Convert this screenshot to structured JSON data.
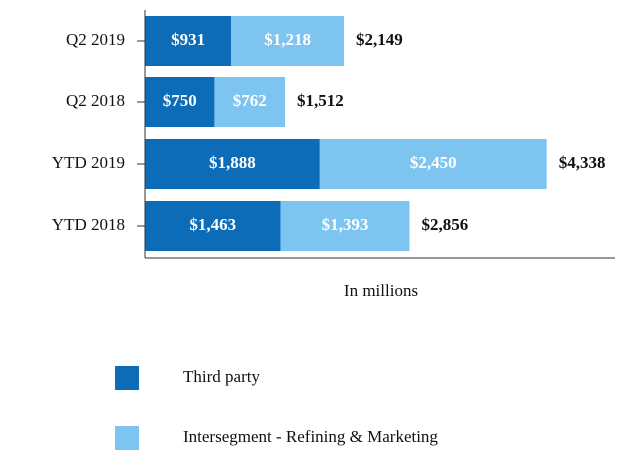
{
  "chart_data": {
    "type": "bar-stacked-horizontal",
    "categories": [
      "Q2 2019",
      "Q2 2018",
      "YTD 2019",
      "YTD 2018"
    ],
    "series": [
      {
        "name": "Third party",
        "color": "#0d6cb8",
        "values": [
          931,
          750,
          1888,
          1463
        ],
        "value_labels": [
          "$931",
          "$750",
          "$1,888",
          "$1,463"
        ]
      },
      {
        "name": "Intersegment - Refining & Marketing",
        "color": "#7ec4f1",
        "values": [
          1218,
          762,
          2450,
          1393
        ],
        "value_labels": [
          "$1,218",
          "$762",
          "$2,450",
          "$1,393"
        ]
      }
    ],
    "totals": [
      2149,
      1512,
      4338,
      2856
    ],
    "total_labels": [
      "$2,149",
      "$1,512",
      "$4,338",
      "$2,856"
    ],
    "xlabel": "In millions",
    "xlim": [
      0,
      5000
    ],
    "legend": "bottom"
  }
}
